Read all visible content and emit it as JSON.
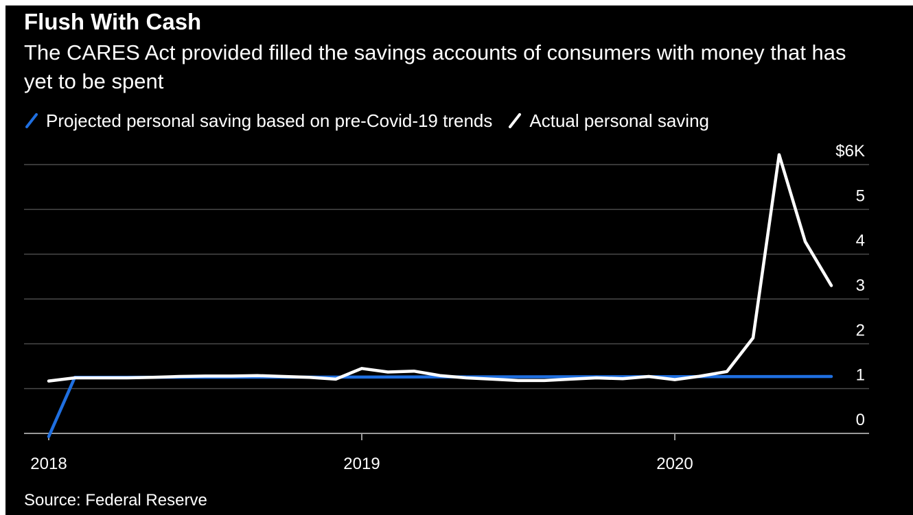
{
  "title": "Flush With Cash",
  "subtitle": "The CARES Act provided filled the savings accounts of consumers with money that has yet to be spent",
  "legend": [
    {
      "label": "Projected personal saving based on pre-Covid-19 trends",
      "color": "#1f6fe0"
    },
    {
      "label": "Actual personal saving",
      "color": "#ffffff"
    }
  ],
  "source": "Source: Federal Reserve",
  "colors": {
    "background": "#000000",
    "grid": "#4a4a4a",
    "text": "#ffffff"
  },
  "chart_data": {
    "type": "line",
    "ylim": [
      0,
      6
    ],
    "y_ticks": [
      {
        "value": 6,
        "label": "$6K"
      },
      {
        "value": 5,
        "label": "5"
      },
      {
        "value": 4,
        "label": "4"
      },
      {
        "value": 3,
        "label": "3"
      },
      {
        "value": 2,
        "label": "2"
      },
      {
        "value": 1,
        "label": "1"
      },
      {
        "value": 0,
        "label": "0"
      }
    ],
    "x_ticks": [
      {
        "month": 0,
        "label": "2018"
      },
      {
        "month": 12,
        "label": "2019"
      },
      {
        "month": 24,
        "label": "2020"
      }
    ],
    "x_domain": [
      0,
      30
    ],
    "grid": true,
    "series": [
      {
        "name": "Projected personal saving based on pre-Covid-19 trends",
        "color": "#1f6fe0",
        "x": [
          0,
          1,
          30
        ],
        "values": [
          -0.07,
          1.25,
          1.27
        ]
      },
      {
        "name": "Actual personal saving",
        "color": "#ffffff",
        "x": [
          0,
          1,
          2,
          3,
          4,
          5,
          6,
          7,
          8,
          9,
          10,
          11,
          12,
          13,
          14,
          15,
          16,
          17,
          18,
          19,
          20,
          21,
          22,
          23,
          24,
          25,
          26,
          27,
          28,
          29,
          30
        ],
        "values": [
          1.17,
          1.24,
          1.24,
          1.24,
          1.25,
          1.27,
          1.28,
          1.28,
          1.29,
          1.27,
          1.25,
          1.21,
          1.45,
          1.37,
          1.39,
          1.29,
          1.24,
          1.21,
          1.18,
          1.18,
          1.21,
          1.24,
          1.22,
          1.27,
          1.2,
          1.28,
          1.38,
          2.13,
          6.22,
          4.28,
          3.3
        ]
      }
    ],
    "xlabel": "",
    "ylabel": ""
  }
}
